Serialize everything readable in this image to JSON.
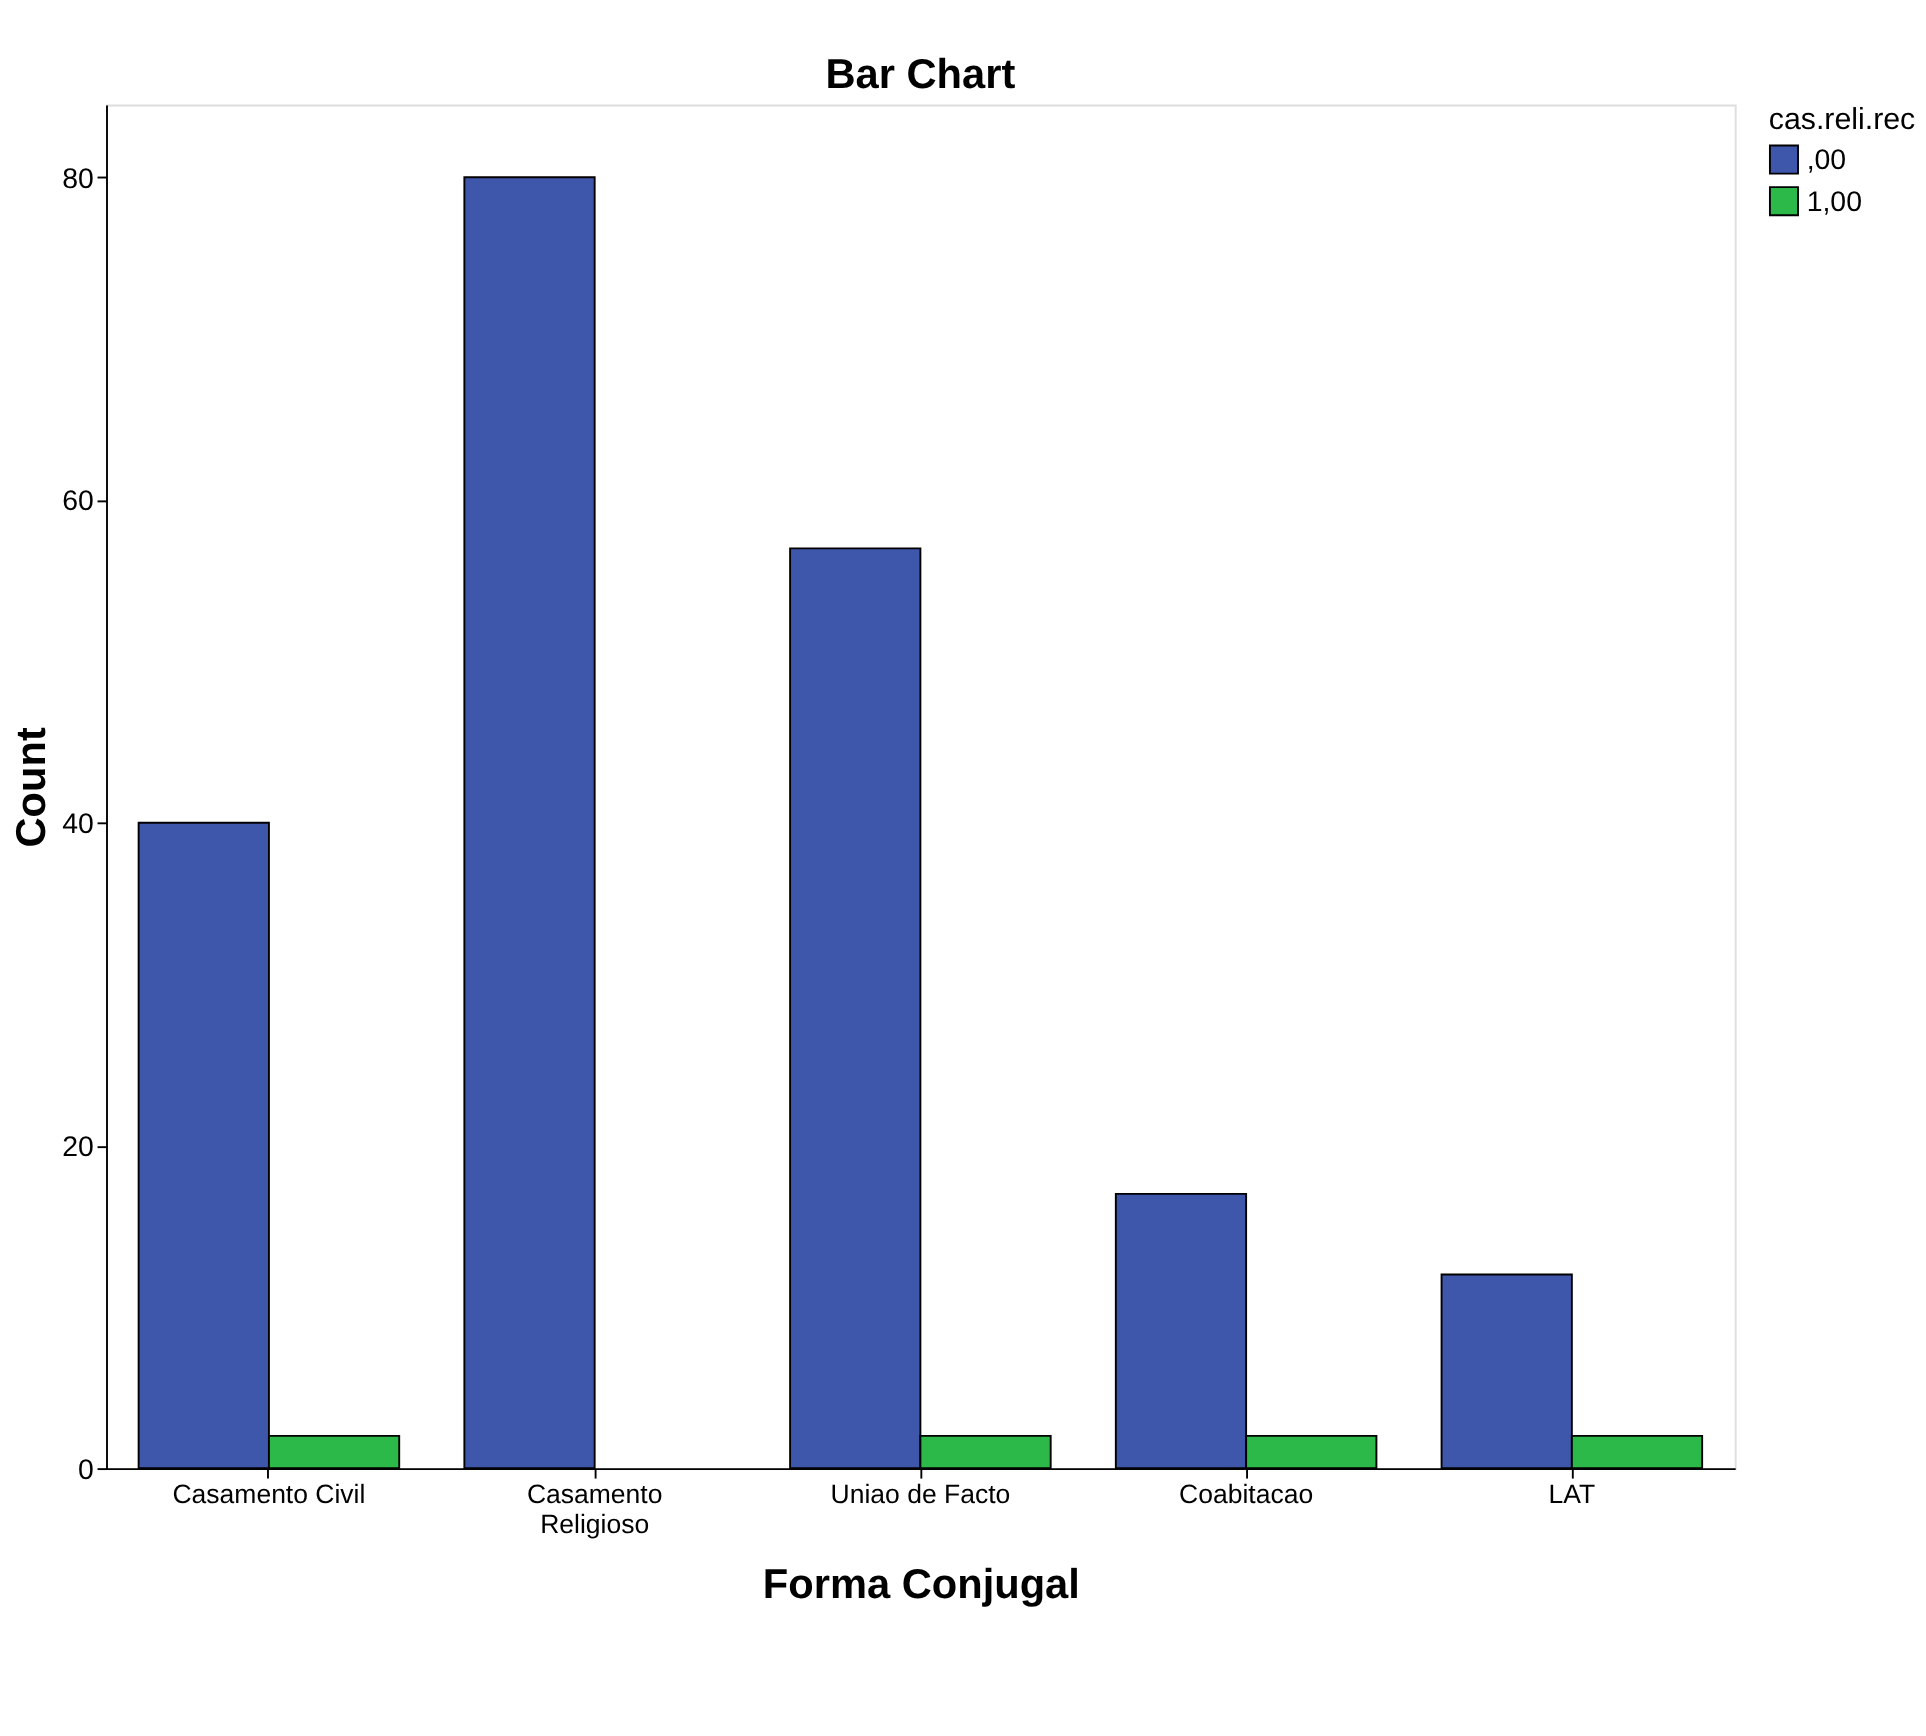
{
  "chart_data": {
    "type": "bar",
    "title": "Bar Chart",
    "xlabel": "Forma Conjugal",
    "ylabel": "Count",
    "legend_title": "cas.reli.rec",
    "categories": [
      "Casamento Civil",
      "Casamento Religioso",
      "Uniao de Facto",
      "Coabitacao",
      "LAT"
    ],
    "series": [
      {
        "name": ",00",
        "color": "#3f57ab",
        "values": [
          40,
          80,
          57,
          17,
          12
        ]
      },
      {
        "name": "1,00",
        "color": "#2db84a",
        "values": [
          2,
          null,
          2,
          2,
          2
        ]
      }
    ],
    "ylim": [
      0,
      84.5
    ],
    "yticks": [
      0,
      20,
      40,
      60,
      80
    ],
    "grid": false,
    "legend": "top right"
  }
}
